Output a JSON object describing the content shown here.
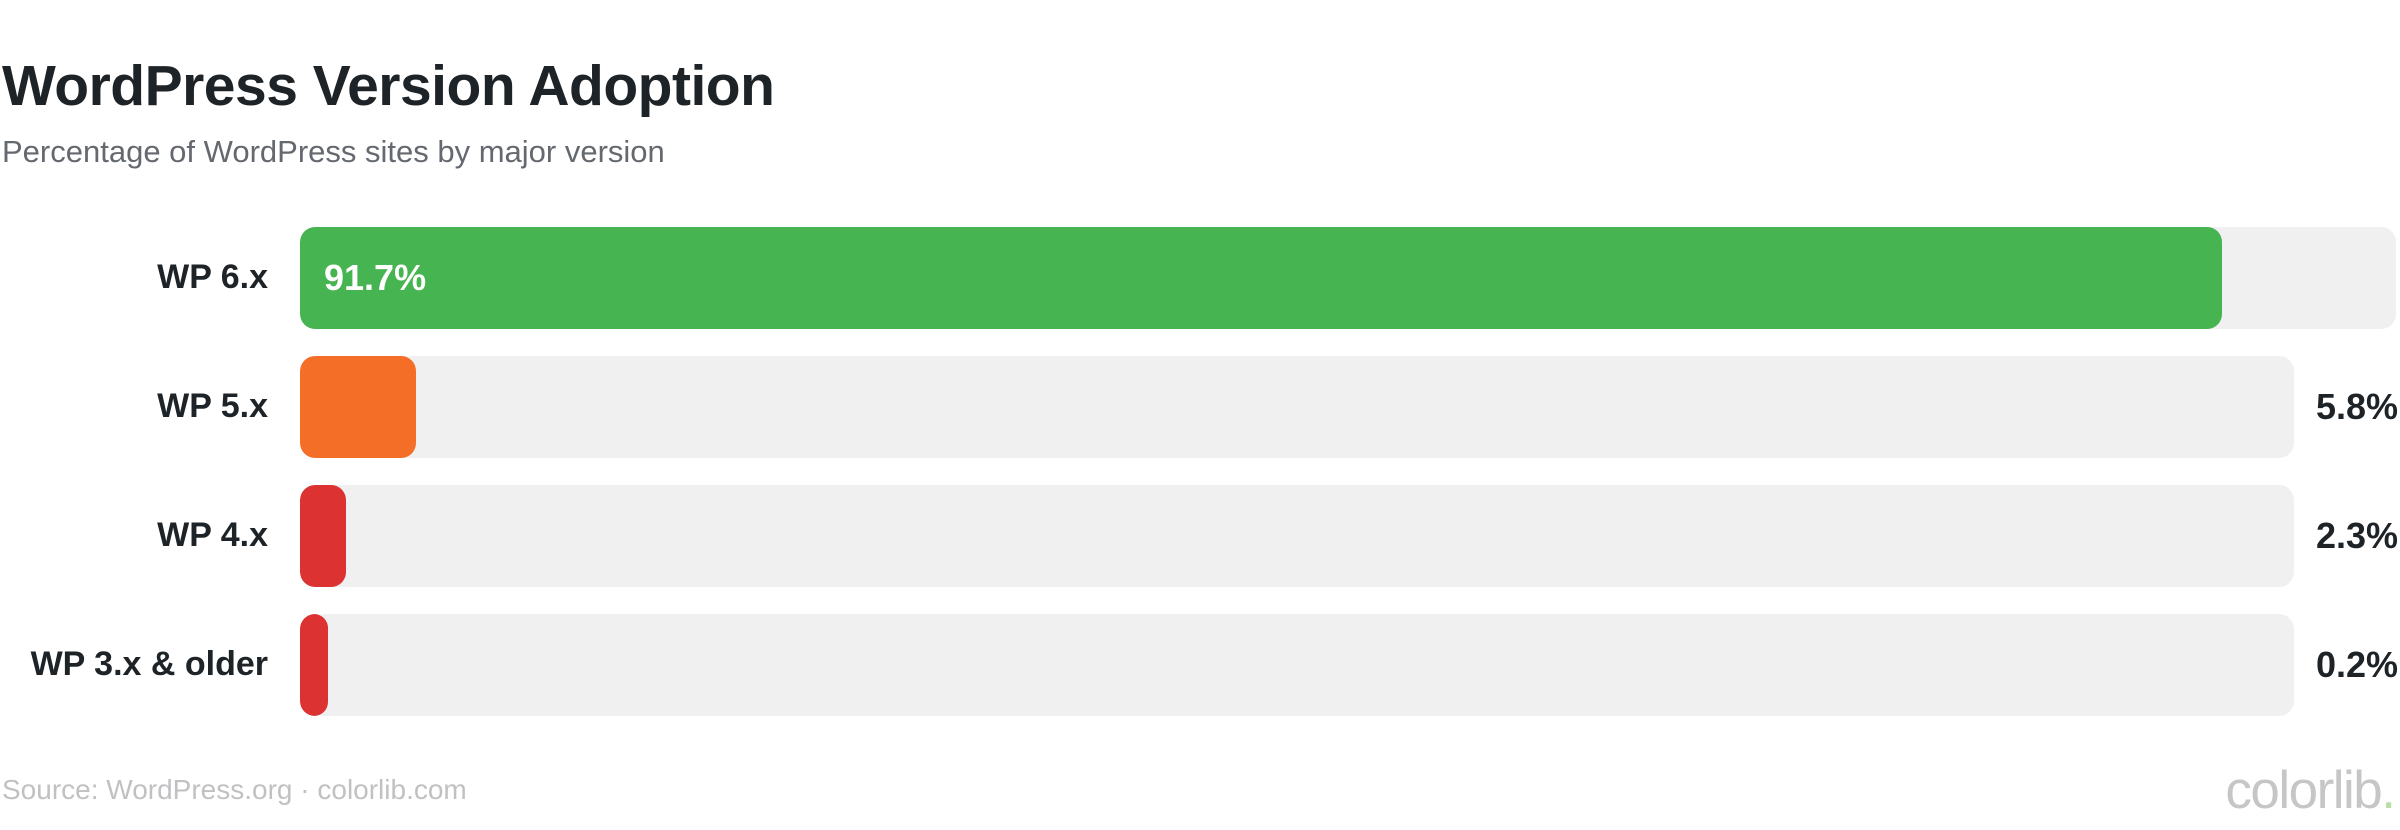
{
  "header": {
    "title": "WordPress Version Adoption",
    "subtitle": "Percentage of WordPress sites by major version"
  },
  "chart_data": {
    "type": "bar",
    "orientation": "horizontal",
    "title": "WordPress Version Adoption",
    "subtitle": "Percentage of WordPress sites by major version",
    "categories": [
      "WP 6.x",
      "WP 5.x",
      "WP 4.x",
      "WP 3.x & older"
    ],
    "values": [
      91.7,
      5.8,
      2.3,
      0.2
    ],
    "value_labels": [
      "91.7%",
      "5.8%",
      "2.3%",
      "0.2%"
    ],
    "bar_colors": [
      "#46b450",
      "#f56e28",
      "#dc3232",
      "#dc3232"
    ],
    "track_color": "#f0f0f1",
    "xlim": [
      0,
      100
    ],
    "xlabel": "",
    "ylabel": "",
    "grid": false,
    "legend": false,
    "inside_label_min_value": 50
  },
  "footer": {
    "source": "Source: WordPress.org · colorlib.com",
    "logo_text": "colorlib",
    "logo_dot": "."
  },
  "colors": {
    "heading": "#1d2327",
    "subtitle": "#646970",
    "green": "#46b450",
    "orange": "#f56e28",
    "red": "#dc3232",
    "track": "#f0f0f1",
    "source_text": "#c0c1c3",
    "logo_gray": "#c6c6c6",
    "logo_dot_green": "#b7dfa5"
  }
}
